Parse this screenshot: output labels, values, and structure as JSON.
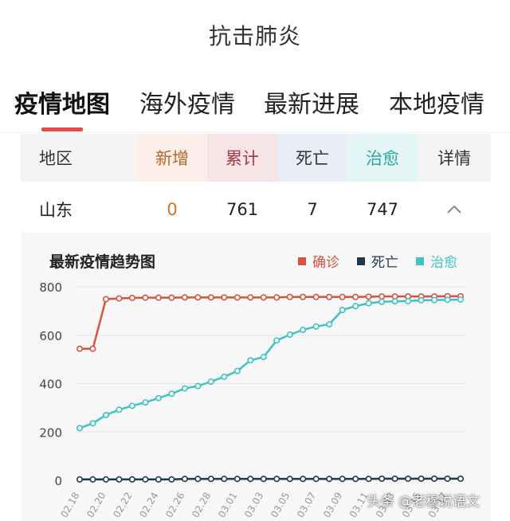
{
  "header": {
    "title": "抗击肺炎"
  },
  "tabs": [
    {
      "label": "疫情地图",
      "active": true
    },
    {
      "label": "海外疫情",
      "active": false
    },
    {
      "label": "最新进展",
      "active": false
    },
    {
      "label": "本地疫情",
      "active": false
    }
  ],
  "table": {
    "headers": [
      "地区",
      "新增",
      "累计",
      "死亡",
      "治愈",
      "详情"
    ],
    "row": {
      "region": "山东",
      "new": "0",
      "total": "761",
      "deaths": "7",
      "cured": "747",
      "detail_icon": "chevron-up-icon"
    }
  },
  "chart_data": {
    "type": "line",
    "title": "最新疫情趋势图",
    "legend_position": "top-right",
    "xlabel": "",
    "ylabel": "",
    "ylim": [
      0,
      800
    ],
    "yticks": [
      0,
      200,
      400,
      600,
      800
    ],
    "x": [
      "02.18",
      "02.19",
      "02.20",
      "02.21",
      "02.22",
      "02.23",
      "02.24",
      "02.25",
      "02.26",
      "02.27",
      "02.28",
      "02.29",
      "03.01",
      "03.02",
      "03.03",
      "03.04",
      "03.05",
      "03.06",
      "03.07",
      "03.08",
      "03.09",
      "03.10",
      "03.11",
      "03.12",
      "03.13",
      "03.14",
      "03.15",
      "03.16",
      "03.17",
      "03.18"
    ],
    "x_tick_labels": [
      "02.18",
      "02.20",
      "02.22",
      "02.24",
      "02.26",
      "02.28",
      "03.01",
      "03.03",
      "03.05",
      "03.07",
      "03.09",
      "03.11",
      "03.13",
      "03.15",
      "03.17"
    ],
    "series": [
      {
        "name": "确诊",
        "color": "#d9523f",
        "values": [
          544,
          544,
          749,
          752,
          754,
          755,
          755,
          755,
          756,
          756,
          756,
          756,
          756,
          756,
          756,
          756,
          758,
          758,
          758,
          758,
          758,
          758,
          759,
          760,
          760,
          760,
          760,
          760,
          761,
          761
        ]
      },
      {
        "name": "死亡",
        "color": "#1f3a4d",
        "values": [
          4,
          4,
          4,
          4,
          4,
          4,
          4,
          4,
          6,
          6,
          6,
          6,
          6,
          6,
          6,
          6,
          6,
          6,
          6,
          6,
          6,
          6,
          6,
          7,
          7,
          7,
          7,
          7,
          7,
          7
        ]
      },
      {
        "name": "治愈",
        "color": "#3ec2c2",
        "values": [
          216,
          236,
          270,
          292,
          308,
          322,
          340,
          358,
          380,
          390,
          408,
          428,
          452,
          496,
          510,
          578,
          602,
          622,
          636,
          645,
          704,
          720,
          732,
          738,
          740,
          741,
          744,
          745,
          746,
          747
        ]
      }
    ]
  },
  "watermark": "头条 @老穆说语文"
}
